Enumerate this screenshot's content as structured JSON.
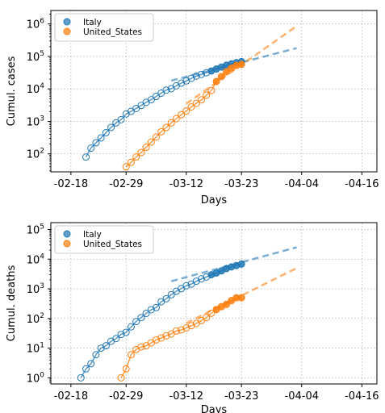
{
  "colors": {
    "italy": "#1f77b4",
    "united_states": "#ff7f0e",
    "grid": "#b0b0b0"
  },
  "chart_data": [
    {
      "type": "scatter",
      "yscale": "log",
      "grid": true,
      "legend_position": "top-left",
      "xlabel": "Days",
      "ylabel": "Cumul. cases",
      "xlim": [
        "2020-02-14",
        "2020-04-19"
      ],
      "ylim": [
        28,
        2600000
      ],
      "xticks": [
        "-02-18",
        "-02-29",
        "-03-12",
        "-03-23",
        "-04-04",
        "-04-16"
      ],
      "yticks": [
        {
          "value": 100,
          "base": "10",
          "exp": "2"
        },
        {
          "value": 1000,
          "base": "10",
          "exp": "3"
        },
        {
          "value": 10000,
          "base": "10",
          "exp": "4"
        },
        {
          "value": 100000,
          "base": "10",
          "exp": "5"
        },
        {
          "value": 1000000,
          "base": "10",
          "exp": "6"
        }
      ],
      "series": [
        {
          "name": "Italy",
          "color": "#1f77b4",
          "x": [
            "2020-02-21",
            "2020-02-22",
            "2020-02-23",
            "2020-02-24",
            "2020-02-25",
            "2020-02-26",
            "2020-02-27",
            "2020-02-28",
            "2020-02-29",
            "2020-03-01",
            "2020-03-02",
            "2020-03-03",
            "2020-03-04",
            "2020-03-05",
            "2020-03-06",
            "2020-03-07",
            "2020-03-08",
            "2020-03-09",
            "2020-03-10",
            "2020-03-11",
            "2020-03-12",
            "2020-03-13",
            "2020-03-14",
            "2020-03-15",
            "2020-03-16",
            "2020-03-17",
            "2020-03-18",
            "2020-03-19",
            "2020-03-20",
            "2020-03-21",
            "2020-03-22",
            "2020-03-23"
          ],
          "y": [
            80,
            150,
            220,
            310,
            450,
            650,
            900,
            1130,
            1690,
            2040,
            2500,
            3090,
            3860,
            4640,
            5880,
            7380,
            9170,
            10150,
            12460,
            15110,
            17660,
            21160,
            24750,
            27980,
            31510,
            35710,
            41040,
            47020,
            53580,
            59140,
            64380,
            69180
          ],
          "filled_from": "2020-03-17",
          "fit": {
            "x": [
              "2020-03-09",
              "2020-04-03"
            ],
            "y": [
              18000,
              180000
            ]
          }
        },
        {
          "name": "United_States",
          "color": "#ff7f0e",
          "x": [
            "2020-02-29",
            "2020-03-01",
            "2020-03-02",
            "2020-03-03",
            "2020-03-04",
            "2020-03-05",
            "2020-03-06",
            "2020-03-07",
            "2020-03-08",
            "2020-03-09",
            "2020-03-10",
            "2020-03-11",
            "2020-03-12",
            "2020-03-13",
            "2020-03-14",
            "2020-03-15",
            "2020-03-16",
            "2020-03-17",
            "2020-03-18",
            "2020-03-19",
            "2020-03-20",
            "2020-03-21",
            "2020-03-22",
            "2020-03-23"
          ],
          "y": [
            40,
            55,
            80,
            110,
            160,
            230,
            330,
            480,
            650,
            900,
            1220,
            1600,
            2100,
            2800,
            3600,
            4600,
            6400,
            9000,
            17000,
            24000,
            34000,
            44000,
            53000,
            57000
          ],
          "filled_from": "2020-03-18",
          "fit": {
            "x": [
              "2020-03-12",
              "2020-04-03"
            ],
            "y": [
              3500,
              860000
            ]
          }
        }
      ]
    },
    {
      "type": "scatter",
      "yscale": "log",
      "grid": true,
      "legend_position": "top-left",
      "xlabel": "Days",
      "ylabel": "Cumul. deaths",
      "xlim": [
        "2020-02-14",
        "2020-04-19"
      ],
      "ylim": [
        0.62,
        170000
      ],
      "xticks": [
        "-02-18",
        "-02-29",
        "-03-12",
        "-03-23",
        "-04-04",
        "-04-16"
      ],
      "yticks": [
        {
          "value": 1,
          "base": "10",
          "exp": "0"
        },
        {
          "value": 10,
          "base": "10",
          "exp": "1"
        },
        {
          "value": 100,
          "base": "10",
          "exp": "2"
        },
        {
          "value": 1000,
          "base": "10",
          "exp": "3"
        },
        {
          "value": 10000,
          "base": "10",
          "exp": "4"
        },
        {
          "value": 100000,
          "base": "10",
          "exp": "5"
        }
      ],
      "series": [
        {
          "name": "Italy",
          "color": "#1f77b4",
          "x": [
            "2020-02-20",
            "2020-02-21",
            "2020-02-22",
            "2020-02-23",
            "2020-02-24",
            "2020-02-25",
            "2020-02-26",
            "2020-02-27",
            "2020-02-28",
            "2020-02-29",
            "2020-03-01",
            "2020-03-02",
            "2020-03-03",
            "2020-03-04",
            "2020-03-05",
            "2020-03-06",
            "2020-03-07",
            "2020-03-08",
            "2020-03-09",
            "2020-03-10",
            "2020-03-11",
            "2020-03-12",
            "2020-03-13",
            "2020-03-14",
            "2020-03-15",
            "2020-03-16",
            "2020-03-17",
            "2020-03-18",
            "2020-03-19",
            "2020-03-20",
            "2020-03-21",
            "2020-03-22",
            "2020-03-23"
          ],
          "y": [
            1,
            2,
            3,
            6,
            10,
            12,
            17,
            21,
            29,
            34,
            52,
            79,
            107,
            148,
            197,
            233,
            366,
            463,
            631,
            827,
            1016,
            1266,
            1441,
            1809,
            2158,
            2503,
            2978,
            3405,
            4032,
            4825,
            5476,
            6077,
            6820
          ],
          "filled_from": "2020-03-17",
          "fit": {
            "x": [
              "2020-03-09",
              "2020-04-03"
            ],
            "y": [
              1800,
              25000
            ]
          }
        },
        {
          "name": "United_States",
          "color": "#ff7f0e",
          "x": [
            "2020-02-28",
            "2020-02-29",
            "2020-03-01",
            "2020-03-02",
            "2020-03-03",
            "2020-03-04",
            "2020-03-05",
            "2020-03-06",
            "2020-03-07",
            "2020-03-08",
            "2020-03-09",
            "2020-03-10",
            "2020-03-11",
            "2020-03-12",
            "2020-03-13",
            "2020-03-14",
            "2020-03-15",
            "2020-03-16",
            "2020-03-17",
            "2020-03-18",
            "2020-03-19",
            "2020-03-20",
            "2020-03-21",
            "2020-03-22",
            "2020-03-23"
          ],
          "y": [
            1,
            2,
            6,
            9,
            11,
            12,
            15,
            19,
            22,
            26,
            30,
            38,
            41,
            48,
            57,
            68,
            85,
            108,
            150,
            200,
            250,
            300,
            400,
            500,
            500
          ],
          "filled_from": "2020-03-18",
          "fit": {
            "x": [
              "2020-03-12",
              "2020-04-03"
            ],
            "y": [
              70,
              5000
            ]
          }
        }
      ]
    }
  ]
}
